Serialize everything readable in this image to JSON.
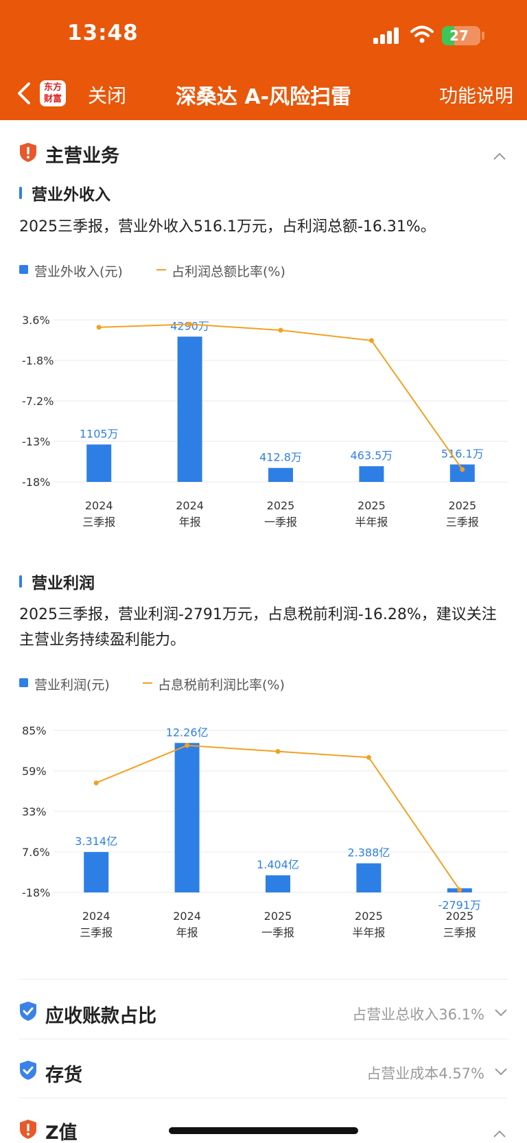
{
  "status": {
    "time": "13:48",
    "battery": "27"
  },
  "nav": {
    "logo_line1": "东方",
    "logo_line2": "财富",
    "close": "关闭",
    "title": "深桑达 A-风险扫雷",
    "func": "功能说明"
  },
  "section_main": {
    "title": "主营业务"
  },
  "block1": {
    "subtitle": "营业外收入",
    "desc": "2025三季报，营业外收入516.1万元，占利润总额-16.31%。",
    "legend_bar": "营业外收入(元)",
    "legend_line": "占利润总额比率(%)"
  },
  "block2": {
    "subtitle": "营业利润",
    "desc": "2025三季报，营业利润-2791万元，占息税前利润-16.28%，建议关注主营业务持续盈利能力。",
    "legend_bar": "营业利润(元)",
    "legend_line": "占息税前利润比率(%)"
  },
  "chart_data": [
    {
      "type": "bar",
      "categories": [
        [
          "2024",
          "三季报"
        ],
        [
          "2024",
          "年报"
        ],
        [
          "2025",
          "一季报"
        ],
        [
          "2025",
          "半年报"
        ],
        [
          "2025",
          "三季报"
        ]
      ],
      "y_ticks": [
        "3.6%",
        "-1.8%",
        "-7.2%",
        "-13%",
        "-18%"
      ],
      "series": [
        {
          "name": "营业外收入(元)",
          "type": "bar",
          "values": [
            1105,
            4290,
            412.8,
            463.5,
            516.1
          ],
          "unit": "万",
          "labels": [
            "1105万",
            "4290万",
            "412.8万",
            "463.5万",
            "516.1万"
          ],
          "color": "#2D7FE6"
        },
        {
          "name": "占利润总额比率(%)",
          "type": "line",
          "values": [
            3.0,
            3.4,
            2.6,
            1.2,
            -16.31
          ],
          "color": "#F4A020"
        }
      ],
      "bar_range": [
        0,
        4500
      ],
      "ylim": [
        -18,
        4
      ]
    },
    {
      "type": "bar",
      "categories": [
        [
          "2024",
          "三季报"
        ],
        [
          "2024",
          "年报"
        ],
        [
          "2025",
          "一季报"
        ],
        [
          "2025",
          "半年报"
        ],
        [
          "2025",
          "三季报"
        ]
      ],
      "y_ticks": [
        "85%",
        "59%",
        "33%",
        "7.6%",
        "-18%"
      ],
      "series": [
        {
          "name": "营业利润(元)",
          "type": "bar",
          "values": [
            3.314,
            12.26,
            1.404,
            2.388,
            -0.2791
          ],
          "unit": "亿",
          "labels": [
            "3.314亿",
            "12.26亿",
            "1.404亿",
            "2.388亿",
            "-2791万"
          ],
          "color": "#2D7FE6"
        },
        {
          "name": "占息税前利润比率(%)",
          "type": "line",
          "values": [
            55,
            80,
            76,
            72,
            -16.28
          ],
          "color": "#F4A020"
        }
      ],
      "bar_range": [
        0,
        12.5
      ],
      "ylim": [
        -18,
        90
      ]
    }
  ],
  "rows": [
    {
      "title": "应收账款占比",
      "value": "占营业总收入36.1%"
    },
    {
      "title": "存货",
      "value": "占营业成本4.57%"
    }
  ],
  "section_z": {
    "title": "Z值"
  },
  "colors": {
    "brand": "#E8570A",
    "bar": "#2D7FE6",
    "line": "#F4A020",
    "risk": "#E8582A",
    "ok": "#3A82E8"
  }
}
